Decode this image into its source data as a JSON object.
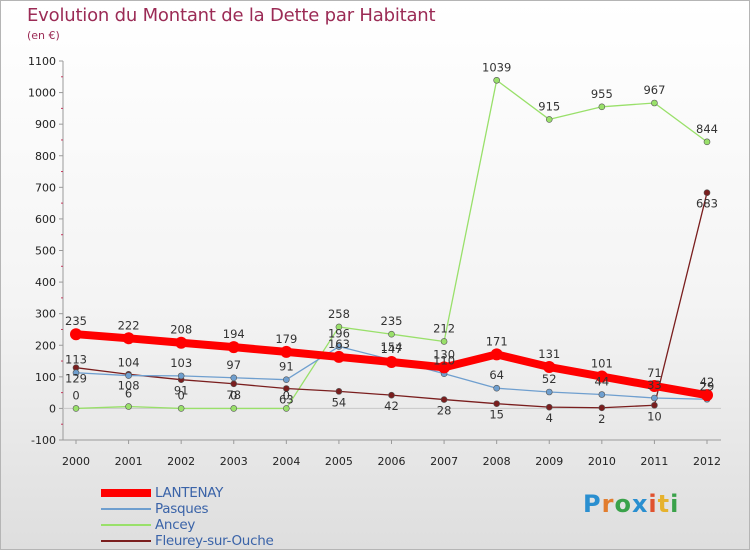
{
  "title": "Evolution du Montant de la Dette par Habitant",
  "unit": "(en €)",
  "logo": {
    "letters": [
      "P",
      "r",
      "o",
      "x",
      "i",
      "t",
      "i"
    ],
    "colors": [
      "#2a8fd0",
      "#e27d2e",
      "#3aa24a",
      "#2a8fd0",
      "#e0522f",
      "#e6b22e",
      "#3aa24a"
    ]
  },
  "chart_data": {
    "type": "line",
    "x": [
      "2000",
      "2001",
      "2002",
      "2003",
      "2004",
      "2005",
      "2006",
      "2007",
      "2008",
      "2009",
      "2010",
      "2011",
      "2012"
    ],
    "ylim": [
      -100,
      1100
    ],
    "yticks": [
      -100,
      0,
      100,
      200,
      300,
      400,
      500,
      600,
      700,
      800,
      900,
      1000,
      1100
    ],
    "grid": false,
    "legend_position": "bottom-left",
    "series": [
      {
        "name": "LANTENAY",
        "color": "#ff0000",
        "values": [
          235,
          222,
          208,
          194,
          179,
          163,
          147,
          130,
          171,
          131,
          101,
          71,
          42
        ]
      },
      {
        "name": "Pasques",
        "color": "#6f9fcf",
        "values": [
          113,
          104,
          103,
          97,
          91,
          196,
          154,
          110,
          64,
          52,
          44,
          33,
          29
        ]
      },
      {
        "name": "Ancey",
        "color": "#99e06a",
        "values": [
          0,
          6,
          0,
          0,
          0,
          258,
          235,
          212,
          1039,
          915,
          955,
          967,
          844
        ]
      },
      {
        "name": "Fleurey-sur-Ouche",
        "color": "#7a1e1e",
        "values": [
          129,
          108,
          91,
          78,
          63,
          54,
          42,
          28,
          15,
          4,
          2,
          10,
          683
        ]
      }
    ],
    "data_labels": [
      [
        "235",
        "222",
        "208",
        "194",
        "179",
        "163",
        "147",
        "130",
        "171",
        "131",
        "101",
        "71",
        "42"
      ],
      [
        "113",
        "104",
        "103",
        "97",
        "91",
        "196",
        "154",
        "110",
        "64",
        "52",
        "44",
        "33",
        "29"
      ],
      [
        "0",
        "6",
        "0",
        "0",
        "0",
        "258",
        "235",
        "212",
        "1039",
        "915",
        "955",
        "967",
        "844"
      ],
      [
        "129",
        "108",
        "91",
        "78",
        "63",
        "54",
        "42",
        "28",
        "15",
        "4",
        "2",
        "10",
        "683"
      ]
    ]
  }
}
